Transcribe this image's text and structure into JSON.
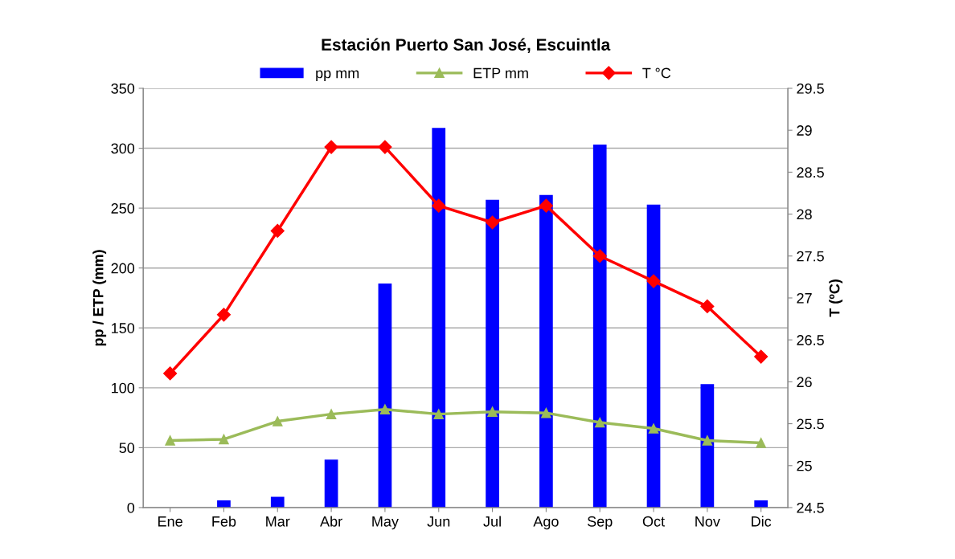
{
  "chart_data": {
    "type": "bar",
    "title": "Estación Puerto San José, Escuintla",
    "ylabel": "pp / ETP (mm)",
    "y2label": "T (ºC)",
    "categories": [
      "Ene",
      "Feb",
      "Mar",
      "Abr",
      "May",
      "Jun",
      "Jul",
      "Ago",
      "Sep",
      "Oct",
      "Nov",
      "Dic"
    ],
    "series": [
      {
        "name": "pp mm",
        "color": "#0000ff",
        "values": [
          0,
          6,
          9,
          40,
          187,
          317,
          257,
          261,
          303,
          253,
          103,
          6
        ]
      },
      {
        "name": "ETP mm",
        "type": "line",
        "color": "#9bbb59",
        "marker": "triangle",
        "values": [
          56,
          57,
          72,
          78,
          82,
          78,
          80,
          79,
          71,
          66,
          56,
          54
        ]
      },
      {
        "name": "T °C",
        "type": "line",
        "axis": "y2",
        "color": "#ff0000",
        "marker": "diamond",
        "values": [
          26.1,
          26.8,
          27.8,
          28.8,
          28.8,
          28.1,
          27.9,
          28.1,
          27.5,
          27.2,
          26.9,
          26.3
        ]
      }
    ],
    "ylim": [
      0,
      350
    ],
    "yticks": [
      0,
      50,
      100,
      150,
      200,
      250,
      300,
      350
    ],
    "y2lim": [
      24.5,
      29.5
    ],
    "y2ticks": [
      24.5,
      25,
      25.5,
      26,
      26.5,
      27,
      27.5,
      28,
      28.5,
      29,
      29.5
    ],
    "grid": "y",
    "legend": "top"
  }
}
